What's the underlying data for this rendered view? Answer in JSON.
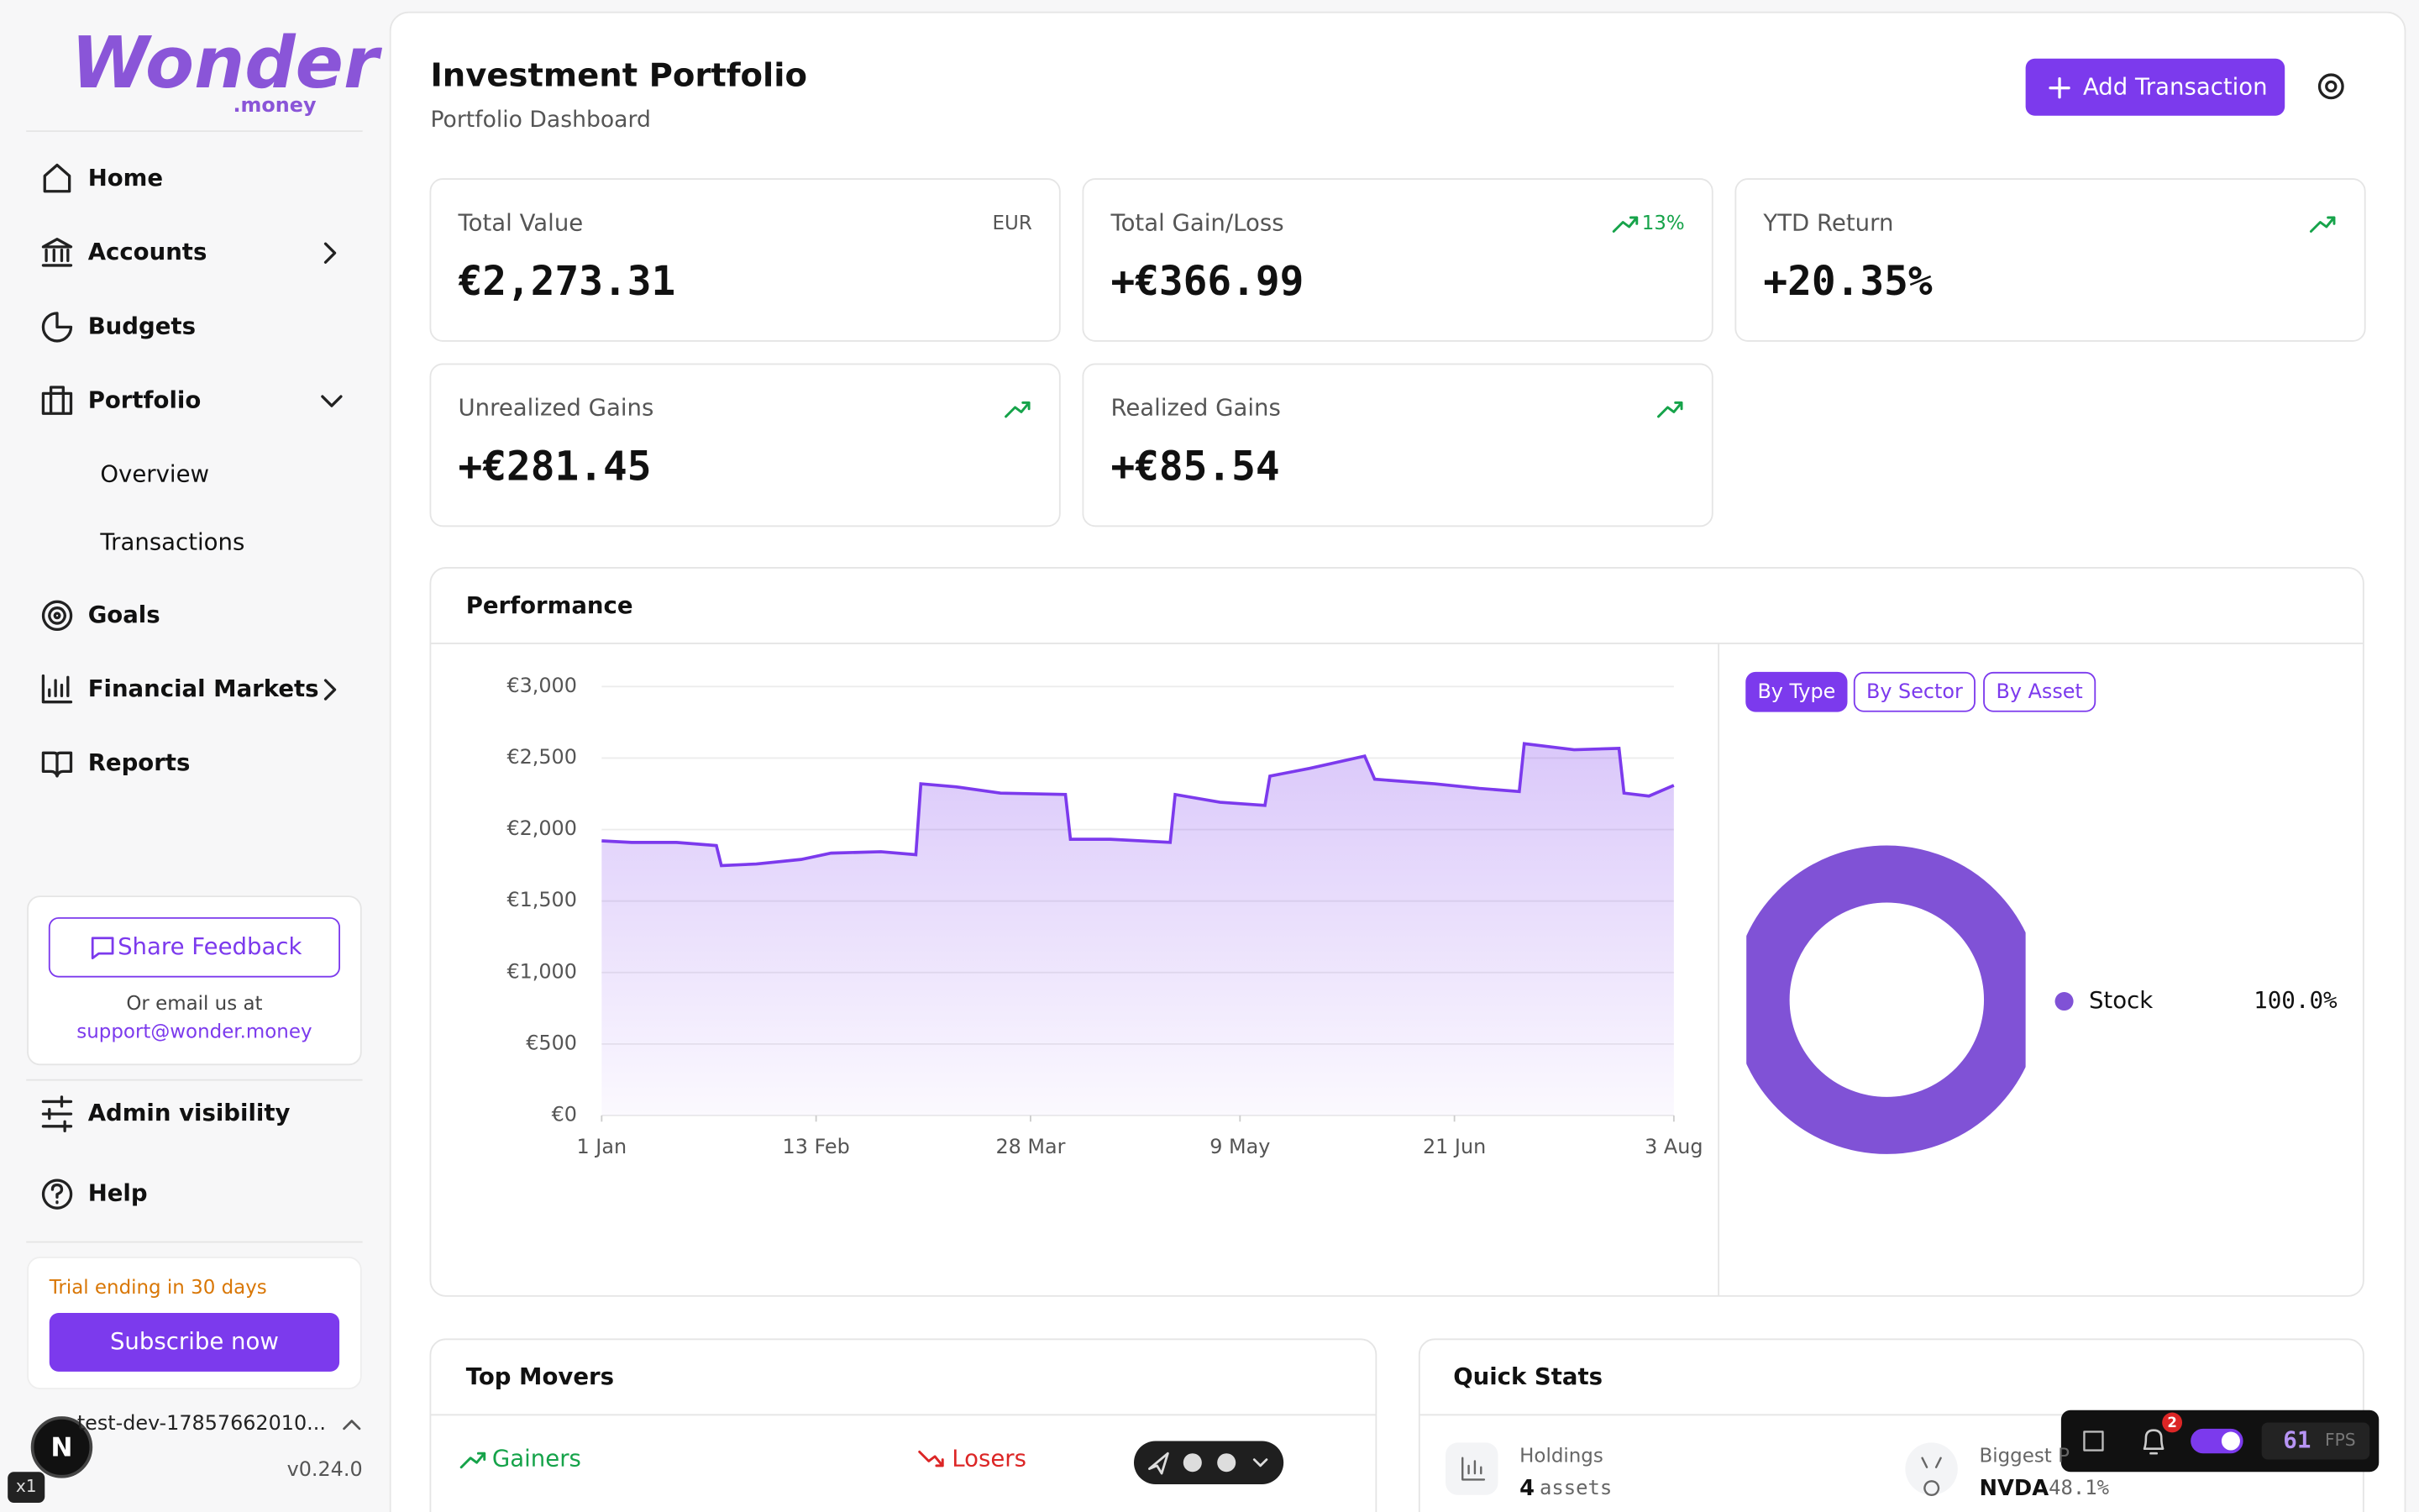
{
  "sidebar": {
    "logo": "Wonder",
    "logo_sub": ".money",
    "nav": [
      "Home",
      "Accounts",
      "Budgets",
      "Portfolio",
      "Goals",
      "Financial Markets",
      "Reports"
    ],
    "portfolio_sub": [
      "Overview",
      "Transactions"
    ],
    "feedback": {
      "button": "Share Feedback",
      "note": "Or email us at",
      "email": "support@wonder.money"
    },
    "admin": "Admin visibility",
    "help": "Help",
    "trial": "Trial ending in 30 days",
    "subscribe": "Subscribe now",
    "user": "test-dev-17857662010...",
    "version": "v0.24.0",
    "avatar": "N",
    "zoom": "x1"
  },
  "header": {
    "title": "Investment Portfolio",
    "subtitle": "Portfolio Dashboard",
    "button": "Add Transaction"
  },
  "cards": [
    {
      "label": "Total Value",
      "badge": "EUR",
      "value": "€2,273.31"
    },
    {
      "label": "Total Gain/Loss",
      "badge": "13%",
      "value": "+€366.99"
    },
    {
      "label": "YTD Return",
      "value": "+20.35%"
    },
    {
      "label": "Unrealized Gains",
      "value": "+€281.45"
    },
    {
      "label": "Realized Gains",
      "value": "+€85.54"
    }
  ],
  "performance": {
    "title": "Performance",
    "tabs": [
      "By Type",
      "By Sector",
      "By Asset"
    ]
  },
  "chart_data": [
    {
      "type": "line",
      "color": "#7c3aed",
      "x": [
        0,
        6,
        15,
        23,
        24,
        31,
        40,
        46,
        56,
        63,
        64,
        71,
        80,
        93,
        94,
        102,
        114,
        115,
        124,
        133,
        134,
        142,
        153,
        155,
        167,
        176,
        184,
        185,
        195,
        204,
        205,
        210,
        215
      ],
      "values": [
        1921,
        1910,
        1910,
        1888,
        1748,
        1759,
        1791,
        1835,
        1845,
        1824,
        2320,
        2299,
        2255,
        2245,
        1932,
        1932,
        1910,
        2245,
        2191,
        2169,
        2374,
        2428,
        2514,
        2352,
        2320,
        2288,
        2266,
        2601,
        2558,
        2568,
        2255,
        2234,
        2309
      ],
      "xlim": [
        0,
        215
      ],
      "xticks": [
        {
          "value": 0,
          "label": "1 Jan"
        },
        {
          "value": 43,
          "label": "13 Feb"
        },
        {
          "value": 86,
          "label": "28 Mar"
        },
        {
          "value": 128,
          "label": "9 May"
        },
        {
          "value": 171,
          "label": "21 Jun"
        },
        {
          "value": 215,
          "label": "3 Aug"
        }
      ],
      "ylim": [
        0,
        3000
      ],
      "yticks": [
        {
          "value": 0,
          "label": "€0"
        },
        {
          "value": 500,
          "label": "€500"
        },
        {
          "value": 1000,
          "label": "€1,000"
        },
        {
          "value": 1500,
          "label": "€1,500"
        },
        {
          "value": 2000,
          "label": "€2,000"
        },
        {
          "value": 2500,
          "label": "€2,500"
        },
        {
          "value": 3000,
          "label": "€3,000"
        }
      ],
      "grid": true
    },
    {
      "type": "pie",
      "donut": true,
      "categories": [
        "Stock"
      ],
      "values": [
        100
      ],
      "value_labels": [
        "100.0%"
      ],
      "colors": [
        "#8052d6"
      ]
    }
  ],
  "top_movers": {
    "title": "Top Movers",
    "gainers": "Gainers",
    "losers": "Losers"
  },
  "quick_stats": {
    "title": "Quick Stats",
    "holdings_label": "Holdings",
    "holdings_value": "4",
    "holdings_unit": "assets",
    "biggest_label": "Biggest P",
    "biggest_value": "NVDA",
    "biggest_pct": "48.1%"
  },
  "devtools": {
    "badge": "2",
    "fps": "61",
    "fps_label": "FPS"
  }
}
